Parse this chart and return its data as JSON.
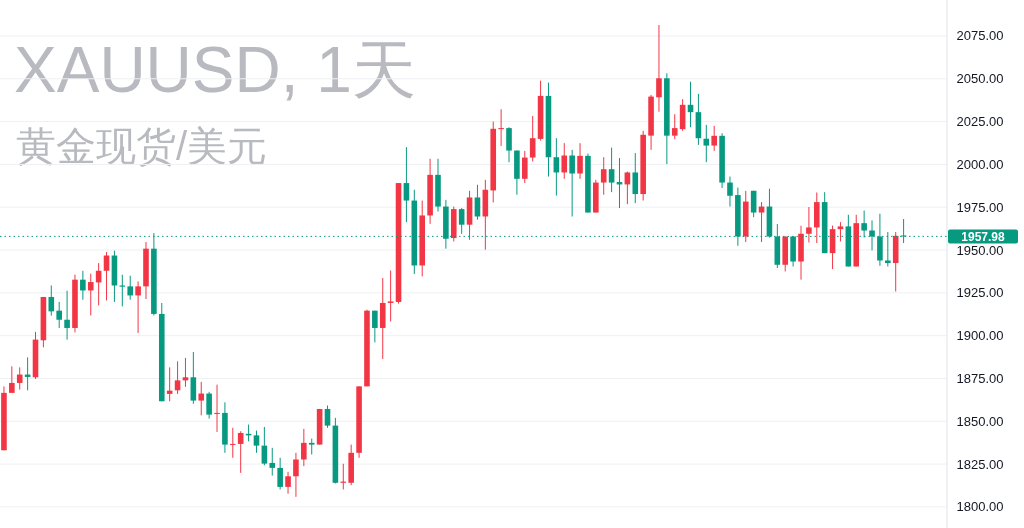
{
  "chart_data": {
    "type": "candlestick",
    "title": "XAUUSD, 1天",
    "subtitle": "黄金现货/美元",
    "categories": [
      null,
      null,
      null,
      null,
      null,
      null,
      null,
      null,
      null,
      null,
      null,
      null,
      null,
      null,
      null,
      null,
      null,
      null,
      null,
      null,
      null,
      null,
      null,
      null,
      null,
      null,
      null,
      null,
      null,
      null,
      null,
      null,
      null,
      null,
      null,
      null,
      null,
      null,
      null,
      null,
      null,
      null,
      null,
      null,
      null,
      null,
      null,
      null,
      null,
      null,
      null,
      null,
      null,
      null,
      null,
      null,
      null,
      null,
      null,
      null,
      null,
      null,
      null,
      null,
      null,
      null,
      null,
      null,
      null,
      null,
      null,
      null,
      null,
      null,
      null,
      null,
      null,
      null,
      null,
      null,
      null,
      null,
      null,
      null,
      null,
      null,
      null,
      null,
      null,
      null,
      null,
      null,
      null,
      null,
      null,
      null,
      null,
      null,
      null,
      null,
      null,
      null,
      null,
      null,
      null,
      null,
      null,
      null,
      null,
      null,
      null,
      null,
      null,
      null,
      null,
      null,
      null,
      null,
      null,
      null
    ],
    "ohlc": [
      [
        1833.1,
        1870.4,
        1833.1,
        1866.6
      ],
      [
        1866.6,
        1882.1,
        1866.6,
        1872.4
      ],
      [
        1872.4,
        1881.5,
        1868.5,
        1877.3
      ],
      [
        1877.3,
        1887.3,
        1868.1,
        1875.9
      ],
      [
        1875.7,
        1902.2,
        1874.7,
        1897.7
      ],
      [
        1897.3,
        1922.6,
        1893.2,
        1922.6
      ],
      [
        1922.6,
        1929.3,
        1911.7,
        1914.2
      ],
      [
        1914.6,
        1919.7,
        1904.5,
        1909.3
      ],
      [
        1909.3,
        1926.3,
        1897.7,
        1904.5
      ],
      [
        1904.5,
        1935.6,
        1901.9,
        1932.7
      ],
      [
        1932.7,
        1937.9,
        1921.0,
        1926.4
      ],
      [
        1926.4,
        1936.2,
        1911.8,
        1931.3
      ],
      [
        1931.1,
        1942.4,
        1917.7,
        1937.9
      ],
      [
        1937.9,
        1948.8,
        1920.6,
        1946.8
      ],
      [
        1946.8,
        1949.6,
        1919.7,
        1929.3
      ],
      [
        1929.3,
        1935.6,
        1917.1,
        1928.6
      ],
      [
        1928.8,
        1935.0,
        1921.0,
        1923.5
      ],
      [
        1923.5,
        1931.7,
        1901.6,
        1928.8
      ],
      [
        1928.8,
        1954.7,
        1921.4,
        1950.8
      ],
      [
        1950.8,
        1959.9,
        1911.8,
        1912.7
      ],
      [
        1912.7,
        1919.1,
        1861.7,
        1861.7
      ],
      [
        1866.0,
        1881.5,
        1861.7,
        1867.9
      ],
      [
        1868.1,
        1885.0,
        1866.0,
        1873.9
      ],
      [
        1873.9,
        1887.0,
        1870.1,
        1875.7
      ],
      [
        1875.7,
        1890.5,
        1860.2,
        1862.1
      ],
      [
        1862.1,
        1873.0,
        1853.5,
        1866.2
      ],
      [
        1866.2,
        1867.2,
        1851.6,
        1853.9
      ],
      [
        1854.3,
        1871.4,
        1843.8,
        1854.9
      ],
      [
        1854.9,
        1861.1,
        1831.6,
        1836.4
      ],
      [
        1836.4,
        1846.2,
        1828.7,
        1836.8
      ],
      [
        1836.8,
        1844.2,
        1819.9,
        1843.2
      ],
      [
        1842.7,
        1848.1,
        1838.3,
        1841.8
      ],
      [
        1841.8,
        1844.6,
        1831.6,
        1835.8
      ],
      [
        1835.8,
        1846.7,
        1824.3,
        1825.3
      ],
      [
        1825.7,
        1834.5,
        1818.3,
        1822.8
      ],
      [
        1822.8,
        1828.7,
        1810.2,
        1811.7
      ],
      [
        1811.7,
        1820.5,
        1807.7,
        1817.9
      ],
      [
        1817.9,
        1831.6,
        1805.9,
        1827.7
      ],
      [
        1827.7,
        1845.6,
        1823.8,
        1837.4
      ],
      [
        1837.4,
        1839.9,
        1830.6,
        1836.4
      ],
      [
        1836.4,
        1857.2,
        1836.4,
        1857.2
      ],
      [
        1857.2,
        1859.2,
        1846.2,
        1847.5
      ],
      [
        1847.5,
        1852.0,
        1813.7,
        1814.1
      ],
      [
        1814.1,
        1825.2,
        1810.2,
        1814.8
      ],
      [
        1814.1,
        1836.4,
        1812.7,
        1831.6
      ],
      [
        1831.6,
        1870.4,
        1828.7,
        1870.4
      ],
      [
        1870.4,
        1915.2,
        1870.4,
        1914.6
      ],
      [
        1914.6,
        1914.6,
        1896.1,
        1904.5
      ],
      [
        1904.5,
        1933.7,
        1886.4,
        1919.1
      ],
      [
        1919.1,
        1938.1,
        1908.3,
        1920.0
      ],
      [
        1919.7,
        1989.1,
        1918.7,
        1989.1
      ],
      [
        1989.1,
        2010.1,
        1966.3,
        1978.9
      ],
      [
        1978.9,
        1985.2,
        1936.0,
        1941.0
      ],
      [
        1941.0,
        1978.9,
        1934.6,
        1970.2
      ],
      [
        1970.2,
        2003.3,
        1965.3,
        1993.9
      ],
      [
        1993.9,
        2003.3,
        1972.5,
        1975.4
      ],
      [
        1975.4,
        1979.3,
        1950.8,
        1956.6
      ],
      [
        1957.0,
        1975.4,
        1955.0,
        1973.9
      ],
      [
        1973.9,
        1974.5,
        1959.5,
        1964.8
      ],
      [
        1964.8,
        1984.6,
        1956.0,
        1980.7
      ],
      [
        1980.7,
        1988.1,
        1967.7,
        1969.6
      ],
      [
        1969.6,
        1991.0,
        1950.2,
        1985.2
      ],
      [
        1984.8,
        2025.0,
        1977.8,
        2020.8
      ],
      [
        2020.6,
        2032.2,
        2010.8,
        2021.2
      ],
      [
        2021.2,
        2021.7,
        2001.3,
        2008.1
      ],
      [
        2008.1,
        2008.1,
        1982.3,
        1991.6
      ],
      [
        1991.6,
        2007.9,
        1989.1,
        2004.0
      ],
      [
        2004.0,
        2028.3,
        2001.7,
        2015.3
      ],
      [
        2014.9,
        2048.9,
        2013.9,
        2040.0
      ],
      [
        2040.0,
        2047.8,
        1992.9,
        2004.2
      ],
      [
        2004.2,
        2015.3,
        1981.8,
        1995.3
      ],
      [
        1995.3,
        2012.4,
        1991.6,
        2005.2
      ],
      [
        2005.2,
        2008.5,
        1969.6,
        1994.7
      ],
      [
        1994.7,
        2012.4,
        1991.6,
        2005.0
      ],
      [
        2005.0,
        2006.3,
        1971.9,
        1971.9
      ],
      [
        1971.9,
        1991.0,
        1971.9,
        1989.4
      ],
      [
        1989.4,
        2004.2,
        1982.3,
        1997.2
      ],
      [
        1997.2,
        2009.8,
        1983.8,
        1989.4
      ],
      [
        1989.7,
        2003.7,
        1974.5,
        1988.3
      ],
      [
        1988.3,
        1995.8,
        1976.8,
        1995.3
      ],
      [
        1995.3,
        2006.6,
        1977.4,
        1982.7
      ],
      [
        1982.7,
        2019.6,
        1978.9,
        2017.3
      ],
      [
        2016.8,
        2040.6,
        2008.5,
        2039.6
      ],
      [
        2039.2,
        2081.4,
        2030.8,
        2050.3
      ],
      [
        2050.3,
        2053.2,
        2000.2,
        2016.8
      ],
      [
        2016.8,
        2029.3,
        2014.7,
        2021.2
      ],
      [
        2020.6,
        2038.1,
        2019.6,
        2034.8
      ],
      [
        2034.8,
        2048.3,
        2021.7,
        2030.5
      ],
      [
        2030.5,
        2041.2,
        2011.4,
        2015.3
      ],
      [
        2015.0,
        2023.1,
        2001.3,
        2011.0
      ],
      [
        2011.0,
        2022.5,
        2007.9,
        2016.7
      ],
      [
        2016.7,
        2018.2,
        1986.2,
        1989.4
      ],
      [
        1989.4,
        1992.9,
        1975.4,
        1981.7
      ],
      [
        1982.1,
        1986.5,
        1952.5,
        1957.9
      ],
      [
        1957.9,
        1984.6,
        1954.7,
        1978.3
      ],
      [
        1984.6,
        1984.6,
        1969.2,
        1971.9
      ],
      [
        1971.9,
        1978.0,
        1954.7,
        1975.4
      ],
      [
        1975.4,
        1985.8,
        1957.3,
        1957.9
      ],
      [
        1957.9,
        1965.2,
        1939.5,
        1941.4
      ],
      [
        1941.4,
        1957.9,
        1937.5,
        1957.9
      ],
      [
        1957.9,
        1957.9,
        1940.4,
        1943.3
      ],
      [
        1943.3,
        1964.2,
        1932.7,
        1959.5
      ],
      [
        1959.5,
        1975.1,
        1954.4,
        1963.2
      ],
      [
        1963.2,
        1983.6,
        1954.1,
        1978.0
      ],
      [
        1978.0,
        1983.8,
        1948.2,
        1948.2
      ],
      [
        1948.2,
        1964.3,
        1938.9,
        1962.2
      ],
      [
        1962.2,
        1966.3,
        1955.0,
        1963.8
      ],
      [
        1963.8,
        1970.6,
        1940.4,
        1940.4
      ],
      [
        1940.4,
        1970.6,
        1940.4,
        1965.7
      ],
      [
        1965.7,
        1973.1,
        1957.3,
        1961.4
      ],
      [
        1961.4,
        1967.3,
        1949.8,
        1957.9
      ],
      [
        1957.9,
        1971.2,
        1940.8,
        1943.9
      ],
      [
        1943.9,
        1960.5,
        1940.4,
        1942.4
      ],
      [
        1942.4,
        1960.5,
        1925.8,
        1958.3
      ],
      [
        1958.5,
        1968.1,
        1954.1,
        1957.98
      ],
      null,
      null,
      null,
      null,
      null
    ],
    "ylim": [
      1787.7,
      2096.0
    ],
    "yticks": [
      {
        "value": 1800,
        "label": "1800.00"
      },
      {
        "value": 1825,
        "label": "1825.00"
      },
      {
        "value": 1850,
        "label": "1850.00"
      },
      {
        "value": 1875,
        "label": "1875.00"
      },
      {
        "value": 1900,
        "label": "1900.00"
      },
      {
        "value": 1925,
        "label": "1925.00"
      },
      {
        "value": 1950,
        "label": "1950.00"
      },
      {
        "value": 1975,
        "label": "1975.00"
      },
      {
        "value": 2000,
        "label": "2000.00"
      },
      {
        "value": 2025,
        "label": "2025.00"
      },
      {
        "value": 2050,
        "label": "2050.00"
      },
      {
        "value": 2075,
        "label": "2075.00"
      }
    ],
    "ref_lines": [
      {
        "axis": "y",
        "value": 1957.98,
        "label": "1957.98",
        "color": "#089981",
        "line_style": "dotted"
      }
    ],
    "grid": "y"
  }
}
